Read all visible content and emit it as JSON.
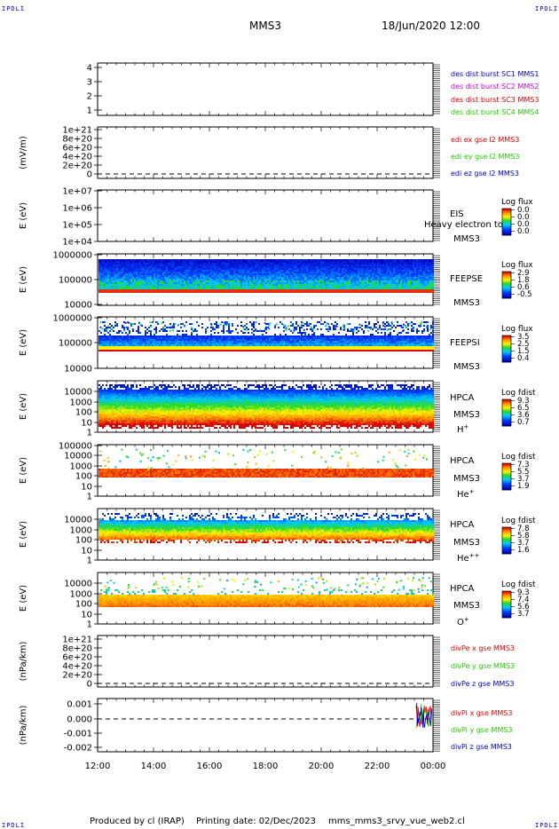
{
  "header": {
    "corner_label": "IPDLI",
    "mission": "MMS3",
    "datetime": "18/Jun/2020 12:00"
  },
  "footer": {
    "produced_by": "Produced by cl (IRAP)",
    "printing_date": "Printing date: 02/Dec/2023",
    "script_name": "mms_mms3_srvy_vue_web2.cl"
  },
  "colors": {
    "red": "#dd0000",
    "magenta": "#cc00cc",
    "green": "#22cc00",
    "blue": "#0000cc",
    "black": "#000000"
  },
  "chart_data": [
    {
      "id": "p1",
      "type": "line",
      "yticks": [
        "1",
        "2",
        "3",
        "4"
      ],
      "series": [
        {
          "name": "des dist burst SC1 MMS1",
          "color": "#0000cc"
        },
        {
          "name": "des dist burst SC2 MMS2",
          "color": "#cc00cc"
        },
        {
          "name": "des dist burst SC3 MMS3",
          "color": "#dd0000"
        },
        {
          "name": "des dist burst SC4 MMS4",
          "color": "#22cc00"
        }
      ]
    },
    {
      "id": "p2",
      "type": "line",
      "ylabel": "(mV/m)",
      "yticks": [
        "0",
        "2e+20",
        "4e+20",
        "6e+20",
        "8e+20",
        "1e+21"
      ],
      "series": [
        {
          "name": "edi ex gse l2 MMS3",
          "color": "#dd0000"
        },
        {
          "name": "edi ey gse l2 MMS3",
          "color": "#22cc00"
        },
        {
          "name": "edi ez gse l2 MMS3",
          "color": "#0000cc"
        }
      ]
    },
    {
      "id": "p3",
      "type": "heatmap",
      "ylabel": "E (eV)",
      "yticks": [
        "1e+04",
        "1e+05",
        "1e+06",
        "1e+07"
      ],
      "ylim": [
        10000,
        10000000
      ],
      "yscale": "log",
      "instrument": "EIS",
      "spacecraft": "MMS3",
      "colorbar_title": "Log flux",
      "colorbar_ticks": [
        "0.0",
        "0.0",
        "0.0",
        "0.0"
      ],
      "annotation": "Heavy electron to"
    },
    {
      "id": "p4",
      "type": "heatmap",
      "ylabel": "E (eV)",
      "yticks": [
        "10000",
        "100000",
        "1000000"
      ],
      "instrument": "FEEPSE",
      "spacecraft": "MMS3",
      "colorbar_title": "Log flux",
      "colorbar_ticks": [
        "2.9",
        "1.8",
        "0.6",
        "-0.5"
      ]
    },
    {
      "id": "p5",
      "type": "heatmap",
      "ylabel": "E (eV)",
      "yticks": [
        "10000",
        "100000",
        "1000000"
      ],
      "instrument": "FEEPSI",
      "spacecraft": "MMS3",
      "colorbar_title": "Log flux",
      "colorbar_ticks": [
        "3.5",
        "2.5",
        "1.5",
        "0.4"
      ]
    },
    {
      "id": "p6",
      "type": "heatmap",
      "ylabel": "E (eV)",
      "yticks": [
        "1",
        "10",
        "100",
        "1000",
        "10000"
      ],
      "instrument": "HPCA",
      "spacecraft": "MMS3",
      "species": "H",
      "species_charge": "+",
      "colorbar_title": "Log fdist",
      "colorbar_ticks": [
        "9.3",
        "6.5",
        "3.6",
        "0.7"
      ]
    },
    {
      "id": "p7",
      "type": "heatmap",
      "ylabel": "E (eV)",
      "yticks": [
        "1",
        "10",
        "100",
        "1000",
        "10000",
        "100000"
      ],
      "instrument": "HPCA",
      "spacecraft": "MMS3",
      "species": "He",
      "species_charge": "+",
      "colorbar_title": "Log fdist",
      "colorbar_ticks": [
        "7.3",
        "5.5",
        "3.7",
        "1.9"
      ]
    },
    {
      "id": "p8",
      "type": "heatmap",
      "ylabel": "E (eV)",
      "yticks": [
        "1",
        "10",
        "100",
        "1000",
        "10000"
      ],
      "instrument": "HPCA",
      "spacecraft": "MMS3",
      "species": "He",
      "species_charge": "++",
      "colorbar_title": "Log fdist",
      "colorbar_ticks": [
        "7.8",
        "5.8",
        "3.7",
        "1.6"
      ]
    },
    {
      "id": "p9",
      "type": "heatmap",
      "ylabel": "E (eV)",
      "yticks": [
        "1",
        "10",
        "100",
        "1000",
        "10000"
      ],
      "instrument": "HPCA",
      "spacecraft": "MMS3",
      "species": "O",
      "species_charge": "+",
      "colorbar_title": "Log fdist",
      "colorbar_ticks": [
        "9.3",
        "7.4",
        "5.6",
        "3.7"
      ]
    },
    {
      "id": "p10",
      "type": "line",
      "ylabel": "(nPa/km)",
      "yticks": [
        "0",
        "2e+20",
        "4e+20",
        "6e+20",
        "8e+20",
        "1e+21"
      ],
      "series": [
        {
          "name": "divPe x gse MMS3",
          "color": "#dd0000"
        },
        {
          "name": "divPe y gse MMS3",
          "color": "#22cc00"
        },
        {
          "name": "divPe z gse MMS3",
          "color": "#0000cc"
        }
      ]
    },
    {
      "id": "p11",
      "type": "line",
      "ylabel": "(nPa/km)",
      "yticks": [
        "-0.002",
        "-0.001",
        "0.000",
        "0.001"
      ],
      "ylim": [
        -0.0022,
        0.0013
      ],
      "series": [
        {
          "name": "divPi x gse MMS3",
          "color": "#dd0000"
        },
        {
          "name": "divPi y gse MMS3",
          "color": "#22cc00"
        },
        {
          "name": "divPi z gse MMS3",
          "color": "#0000cc"
        }
      ],
      "xticks": [
        "12:00",
        "14:00",
        "16:00",
        "18:00",
        "20:00",
        "22:00",
        "00:00"
      ]
    }
  ]
}
